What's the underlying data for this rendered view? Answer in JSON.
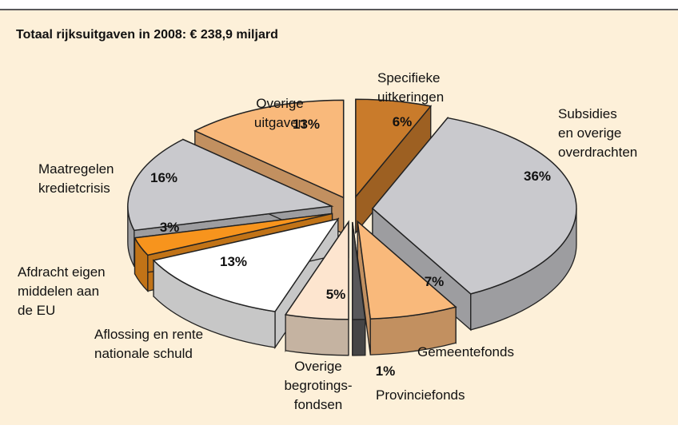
{
  "chart_data": {
    "type": "pie3d",
    "title": "Totaal rijksuitgaven in 2008: € 238,9 miljard",
    "labels": [
      [
        "Specifieke",
        "uitkeringen"
      ],
      [
        "Subsidies",
        "en overige",
        "overdrachten"
      ],
      [
        "Gemeentefonds"
      ],
      [
        "Provinciefonds"
      ],
      [
        "Overige",
        "begrotings-",
        "fondsen"
      ],
      [
        "Aflossing en rente",
        "nationale schuld"
      ],
      [
        "Afdracht eigen",
        "middelen aan",
        "de EU"
      ],
      [
        "Maatregelen",
        "kredietcrisis"
      ],
      [
        "Overige",
        "uitgaven"
      ]
    ],
    "values": [
      6,
      36,
      7,
      1,
      5,
      13,
      3,
      16,
      13
    ],
    "value_labels": [
      "6%",
      "36%",
      "7%",
      "1%",
      "5%",
      "13%",
      "3%",
      "16%",
      "13%"
    ],
    "colors": [
      "#c97b2b",
      "#c9c9cd",
      "#f9b97b",
      "#58585a",
      "#fde5cf",
      "#ffffff",
      "#f7941d",
      "#c9c9cd",
      "#f9b97b"
    ]
  }
}
